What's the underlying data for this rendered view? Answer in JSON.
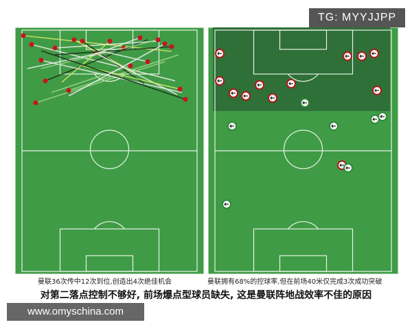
{
  "watermark": "TG: MYYJJPP",
  "captions": {
    "left": "曼联36次传中12次到位,创造出4次绝佳机会",
    "right": "曼联拥有68%的控球率,但在前场40米仅完成3次成功突破"
  },
  "headline": "对第二落点控制不够好, 前场爆点型球员缺失, 这是曼联阵地战效率不佳的原因",
  "site": "www.omyschina.com"
}
